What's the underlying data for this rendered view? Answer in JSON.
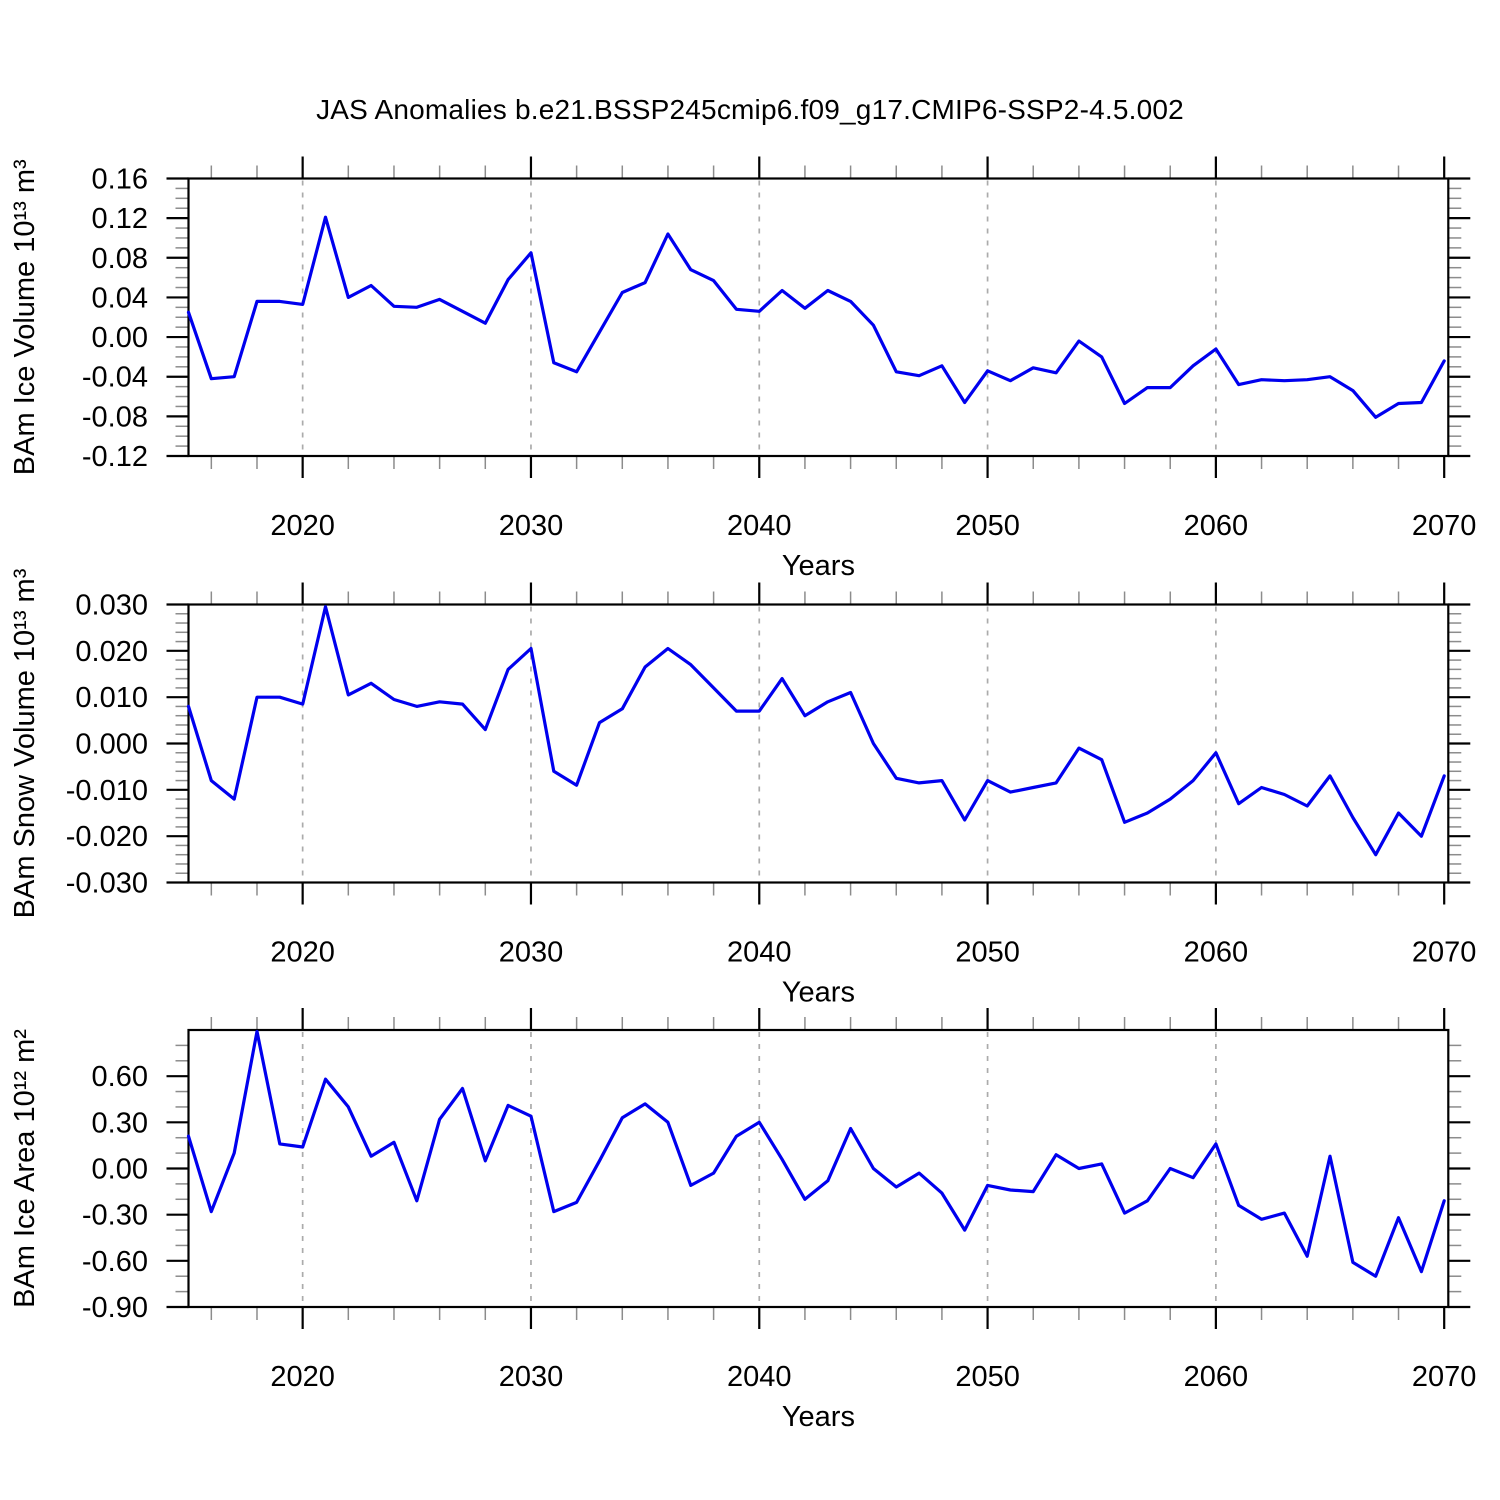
{
  "title": "JAS Anomalies b.e21.BSSP245cmip6.f09_g17.CMIP6-SSP2-4.5.002",
  "colors": {
    "line": "#0000EE",
    "grid_dash": "#ABABAB",
    "axis": "#000000",
    "minor_tick": "#8C8C8C",
    "background": "#FFFFFF"
  },
  "years": [
    2015,
    2016,
    2017,
    2018,
    2019,
    2020,
    2021,
    2022,
    2023,
    2024,
    2025,
    2026,
    2027,
    2028,
    2029,
    2030,
    2031,
    2032,
    2033,
    2034,
    2035,
    2036,
    2037,
    2038,
    2039,
    2040,
    2041,
    2042,
    2043,
    2044,
    2045,
    2046,
    2047,
    2048,
    2049,
    2050,
    2051,
    2052,
    2053,
    2054,
    2055,
    2056,
    2057,
    2058,
    2059,
    2060,
    2061,
    2062,
    2063,
    2064,
    2065,
    2066,
    2067,
    2068,
    2069,
    2070
  ],
  "x_axis": {
    "label": "Years",
    "tick_years": [
      2020,
      2030,
      2040,
      2050,
      2060,
      2070
    ],
    "tick_labels": [
      "2020",
      "2030",
      "2040",
      "2050",
      "2060",
      "2070"
    ],
    "minor_step_years": 2,
    "grid_years": [
      2020,
      2030,
      2040,
      2050,
      2060
    ],
    "range": [
      2015,
      2070.18
    ]
  },
  "chart_data": [
    {
      "type": "line",
      "name": "bam-ice-volume",
      "ylabel": "BAm Ice Volume 10¹³ m³",
      "ylim": [
        -0.12,
        0.16
      ],
      "ytick_values": [
        0.16,
        0.12,
        0.08,
        0.04,
        0.0,
        -0.04,
        -0.08,
        -0.12
      ],
      "ytick_labels": [
        "0.16",
        "0.12",
        "0.08",
        "0.04",
        "0.00",
        "-0.04",
        "-0.08",
        "-0.12"
      ],
      "y_minor_step": 0.01,
      "x_start": 2015,
      "x_step": 1,
      "values": [
        0.025,
        -0.042,
        -0.04,
        0.036,
        0.036,
        0.033,
        0.121,
        0.04,
        0.052,
        0.031,
        0.03,
        0.038,
        0.026,
        0.014,
        0.058,
        0.085,
        -0.026,
        -0.035,
        0.005,
        0.045,
        0.055,
        0.104,
        0.068,
        0.057,
        0.028,
        0.026,
        0.047,
        0.029,
        0.047,
        0.036,
        0.012,
        -0.035,
        -0.039,
        -0.029,
        -0.066,
        -0.034,
        -0.044,
        -0.031,
        -0.036,
        -0.004,
        -0.02,
        -0.067,
        -0.051,
        -0.051,
        -0.029,
        -0.012,
        -0.048,
        -0.043,
        -0.044,
        -0.043,
        -0.04,
        -0.054,
        -0.081,
        -0.067,
        -0.066,
        -0.024
      ]
    },
    {
      "type": "line",
      "name": "bam-snow-volume",
      "ylabel": "BAm Snow Volume 10¹³ m³",
      "ylim": [
        -0.03,
        0.03
      ],
      "ytick_values": [
        0.03,
        0.02,
        0.01,
        0.0,
        -0.01,
        -0.02,
        -0.03
      ],
      "ytick_labels": [
        "0.030",
        "0.020",
        "0.010",
        "0.000",
        "-0.010",
        "-0.020",
        "-0.030"
      ],
      "y_minor_step": 0.002,
      "x_start": 2015,
      "x_step": 1,
      "values": [
        0.008,
        -0.008,
        -0.012,
        0.01,
        0.01,
        0.0085,
        0.0295,
        0.0105,
        0.013,
        0.0095,
        0.008,
        0.009,
        0.0085,
        0.003,
        0.016,
        0.0205,
        -0.006,
        -0.009,
        0.0045,
        0.0075,
        0.0165,
        0.0205,
        0.017,
        0.012,
        0.007,
        0.007,
        0.014,
        0.006,
        0.009,
        0.011,
        0.0,
        -0.0075,
        -0.0085,
        -0.008,
        -0.0165,
        -0.008,
        -0.0105,
        -0.0095,
        -0.0085,
        -0.001,
        -0.0035,
        -0.017,
        -0.015,
        -0.012,
        -0.008,
        -0.002,
        -0.013,
        -0.0095,
        -0.011,
        -0.0135,
        -0.007,
        -0.016,
        -0.024,
        -0.015,
        -0.02,
        -0.007
      ]
    },
    {
      "type": "line",
      "name": "bam-ice-area",
      "ylabel": "BAm Ice Area 10¹² m²",
      "ylim": [
        -0.9,
        0.9
      ],
      "ytick_values": [
        0.6,
        0.3,
        0.0,
        -0.3,
        -0.6,
        -0.9
      ],
      "ytick_labels": [
        "0.60",
        "0.30",
        "0.00",
        "-0.30",
        "-0.60",
        "-0.90"
      ],
      "y_minor_step": 0.1,
      "x_start": 2015,
      "x_step": 1,
      "values": [
        0.21,
        -0.28,
        0.1,
        0.89,
        0.16,
        0.14,
        0.58,
        0.4,
        0.08,
        0.17,
        -0.21,
        0.32,
        0.52,
        0.05,
        0.41,
        0.34,
        -0.28,
        -0.22,
        0.05,
        0.33,
        0.42,
        0.3,
        -0.11,
        -0.03,
        0.21,
        0.3,
        0.06,
        -0.2,
        -0.08,
        0.26,
        0.0,
        -0.12,
        -0.03,
        -0.16,
        -0.4,
        -0.11,
        -0.14,
        -0.15,
        0.09,
        0.0,
        0.03,
        -0.29,
        -0.21,
        0.0,
        -0.06,
        0.16,
        -0.24,
        -0.33,
        -0.29,
        -0.57,
        0.08,
        -0.61,
        -0.7,
        -0.32,
        -0.67,
        -0.21
      ]
    }
  ]
}
